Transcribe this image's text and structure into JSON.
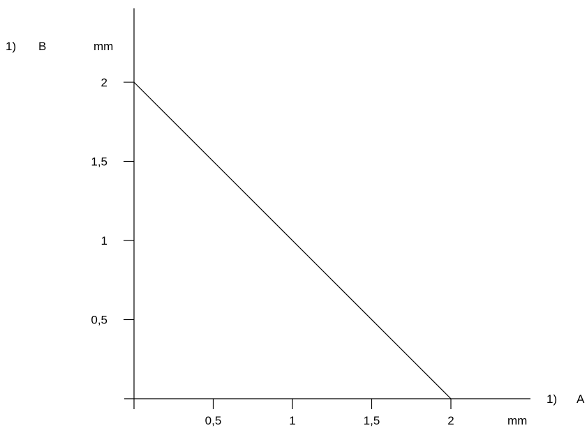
{
  "colors": {
    "background": "#ffffff",
    "ink": "#000000"
  },
  "chart_data": {
    "type": "line",
    "title": "",
    "xlabel": "A",
    "ylabel": "B",
    "x_unit": "mm",
    "y_unit": "mm",
    "x_footnote": "1)",
    "y_footnote": "1)",
    "xlim": [
      0,
      2.4
    ],
    "ylim": [
      0,
      2.4
    ],
    "xticks": [
      0.5,
      1,
      1.5,
      2
    ],
    "yticks": [
      0.5,
      1,
      1.5,
      2
    ],
    "xtick_labels": [
      "0,5",
      "1",
      "1,5",
      "2"
    ],
    "ytick_labels": [
      "0,5",
      "1",
      "1,5",
      "2"
    ],
    "grid": false,
    "legend": "none",
    "series": [
      {
        "x": [
          0,
          2
        ],
        "y": [
          2,
          0
        ]
      }
    ]
  }
}
